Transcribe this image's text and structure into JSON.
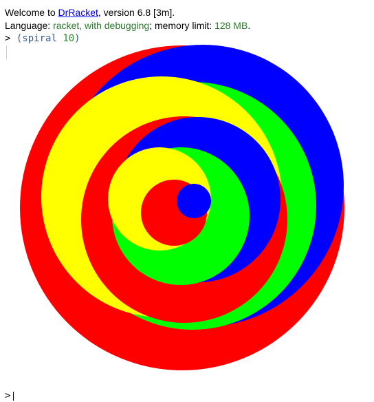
{
  "header": {
    "welcome_prefix": "Welcome to ",
    "app_link": "DrRacket",
    "welcome_suffix": ", version 6.8 [3m].",
    "language_label": "Language: ",
    "language_value": "racket, with debugging",
    "memory_label": "; memory limit: ",
    "memory_value": "128 MB",
    "memory_suffix": "."
  },
  "repl": {
    "prompt": ">",
    "expr_open": "(spiral ",
    "expr_arg": "10",
    "expr_close": ")",
    "next_prompt": ">"
  },
  "colors": {
    "red": "#ff0000",
    "blue": "#0000ff",
    "green": "#00ff00",
    "yellow": "#ffff00"
  }
}
